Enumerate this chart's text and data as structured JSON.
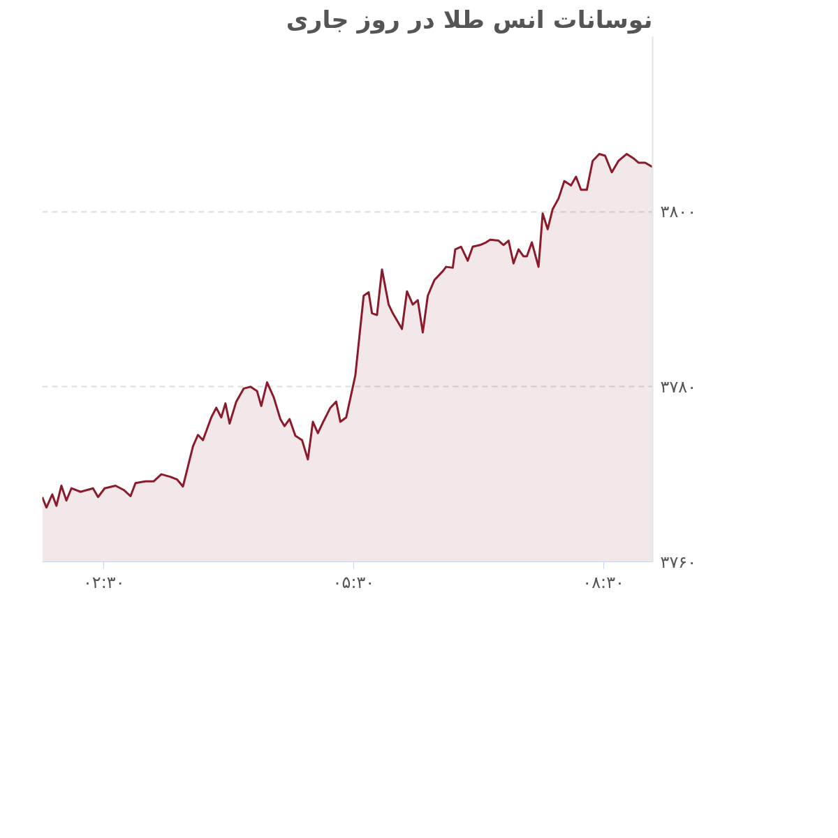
{
  "chart_data": {
    "type": "area",
    "title": "نوسانات انس طلا در روز جاری",
    "x": [
      1.76,
      1.81,
      1.88,
      1.93,
      1.99,
      2.05,
      2.11,
      2.22,
      2.37,
      2.43,
      2.51,
      2.64,
      2.74,
      2.82,
      2.88,
      3.0,
      3.1,
      3.19,
      3.3,
      3.38,
      3.45,
      3.57,
      3.63,
      3.69,
      3.79,
      3.85,
      3.91,
      3.96,
      4.01,
      4.09,
      4.18,
      4.26,
      4.34,
      4.39,
      4.46,
      4.54,
      4.62,
      4.67,
      4.73,
      4.8,
      4.88,
      4.95,
      5.01,
      5.07,
      5.14,
      5.22,
      5.29,
      5.34,
      5.41,
      5.52,
      5.62,
      5.68,
      5.72,
      5.78,
      5.84,
      5.92,
      5.97,
      6.08,
      6.14,
      6.21,
      6.27,
      6.33,
      6.39,
      6.47,
      6.57,
      6.61,
      6.69,
      6.72,
      6.79,
      6.87,
      6.93,
      7.02,
      7.09,
      7.14,
      7.24,
      7.3,
      7.36,
      7.42,
      7.48,
      7.54,
      7.58,
      7.64,
      7.72,
      7.77,
      7.83,
      7.89,
      7.96,
      8.03,
      8.11,
      8.17,
      8.23,
      8.3,
      8.37,
      8.45,
      8.52,
      8.6,
      8.68,
      8.78,
      8.86,
      8.92,
      9.0,
      9.09
    ],
    "series": [
      {
        "color": "#8b1a2b",
        "values": [
          3767.4,
          3766.2,
          3767.7,
          3766.4,
          3768.7,
          3767.0,
          3768.4,
          3768.0,
          3768.4,
          3767.4,
          3768.4,
          3768.7,
          3768.2,
          3767.5,
          3769.0,
          3769.2,
          3769.2,
          3770.0,
          3769.7,
          3769.4,
          3768.6,
          3773.2,
          3774.5,
          3773.9,
          3776.5,
          3777.6,
          3776.5,
          3778.1,
          3775.8,
          3778.3,
          3779.8,
          3780.0,
          3779.5,
          3777.8,
          3780.5,
          3778.8,
          3776.3,
          3775.5,
          3776.3,
          3774.4,
          3773.9,
          3771.7,
          3776.0,
          3774.7,
          3776.1,
          3777.6,
          3778.3,
          3776.0,
          3776.5,
          3781.3,
          3790.4,
          3790.8,
          3788.4,
          3788.2,
          3793.4,
          3789.4,
          3788.4,
          3786.6,
          3790.9,
          3789.4,
          3789.9,
          3786.2,
          3790.4,
          3792.2,
          3793.2,
          3793.7,
          3793.6,
          3795.7,
          3796.0,
          3794.4,
          3796.0,
          3796.2,
          3796.5,
          3796.8,
          3796.7,
          3796.2,
          3796.7,
          3794.1,
          3795.7,
          3794.9,
          3794.9,
          3796.5,
          3793.7,
          3799.8,
          3798.0,
          3800.3,
          3801.5,
          3803.5,
          3803.0,
          3804.0,
          3802.5,
          3802.5,
          3805.8,
          3806.6,
          3806.4,
          3804.5,
          3805.8,
          3806.6,
          3806.1,
          3805.6,
          3805.6,
          3805.1
        ]
      }
    ],
    "xlim": [
      1.76,
      9.09
    ],
    "ylim": [
      3760,
      3820
    ],
    "xticks": [
      {
        "value": 2.5,
        "label": "۰۲:۳۰"
      },
      {
        "value": 5.5,
        "label": "۰۵:۳۰"
      },
      {
        "value": 8.5,
        "label": "۰۸:۳۰"
      }
    ],
    "yticks": [
      {
        "value": 3760,
        "label": "۳۷۶۰"
      },
      {
        "value": 3780,
        "label": "۳۷۸۰"
      },
      {
        "value": 3800,
        "label": "۳۸۰۰"
      }
    ],
    "grid": "y"
  }
}
